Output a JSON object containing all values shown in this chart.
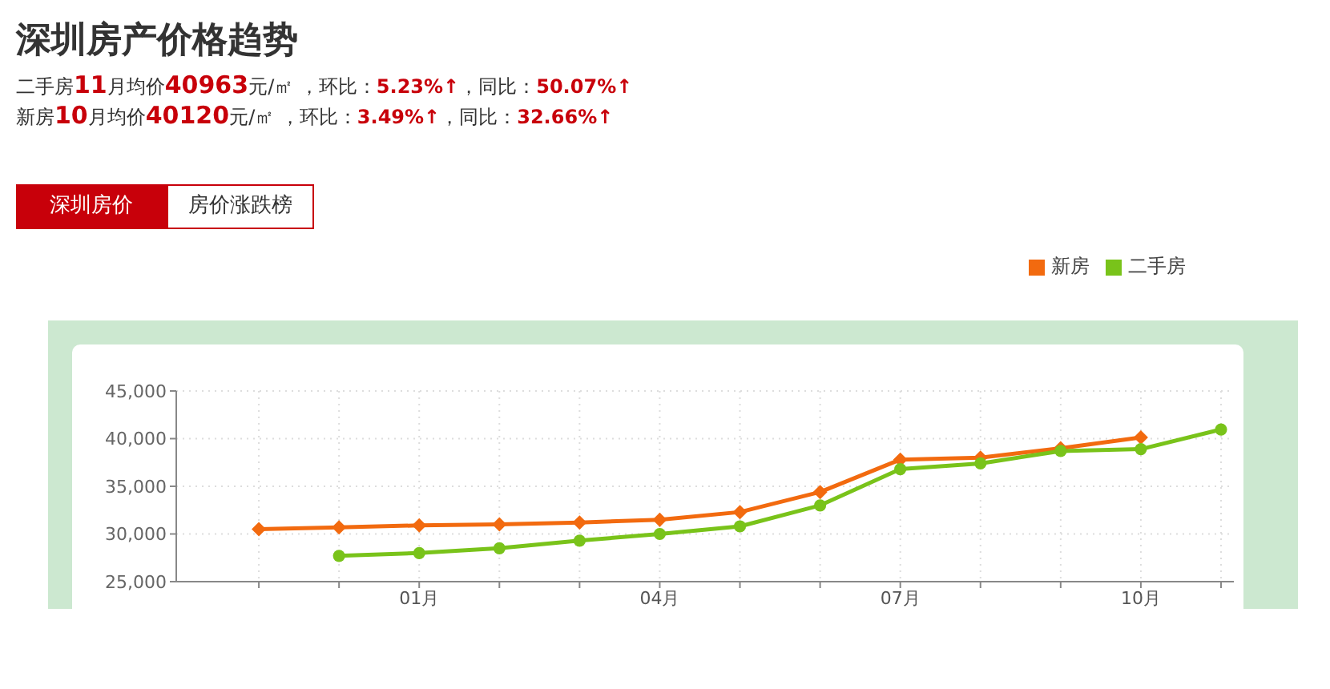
{
  "chart_data": {
    "type": "line",
    "title": "深圳房产价格趋势",
    "subtitle": "二手房11月均价40963元/㎡ ，环比：5.23%↑，同比：50.07%↑",
    "annotations": [
      "新房10月均价40120元/㎡ ，环比：3.49%↑，同比：32.66%↑",
      "深圳房价",
      "房价涨跌榜"
    ],
    "categories": [
      null,
      null,
      "01月",
      null,
      null,
      "04月",
      null,
      null,
      "07月",
      null,
      null,
      "10月",
      null
    ],
    "series": [
      {
        "name": "新房",
        "color": "#f26a0f",
        "marker": "diamond",
        "values": [
          30500,
          30700,
          30900,
          31000,
          31200,
          31500,
          32300,
          34400,
          37800,
          38000,
          39000,
          40120,
          null
        ]
      },
      {
        "name": "二手房",
        "color": "#79c31a",
        "marker": "circle",
        "values": [
          null,
          27700,
          28000,
          28500,
          29300,
          30000,
          30800,
          33000,
          36800,
          37400,
          38700,
          38900,
          40963
        ]
      }
    ],
    "ylim": [
      25000,
      45000
    ],
    "yticks": [
      {
        "value": 25000,
        "label": "25,000"
      },
      {
        "value": 30000,
        "label": "30,000"
      },
      {
        "value": 35000,
        "label": "35,000"
      },
      {
        "value": 40000,
        "label": "40,000"
      },
      {
        "value": 45000,
        "label": "45,000"
      }
    ],
    "grid": true,
    "legend": "top right"
  }
}
